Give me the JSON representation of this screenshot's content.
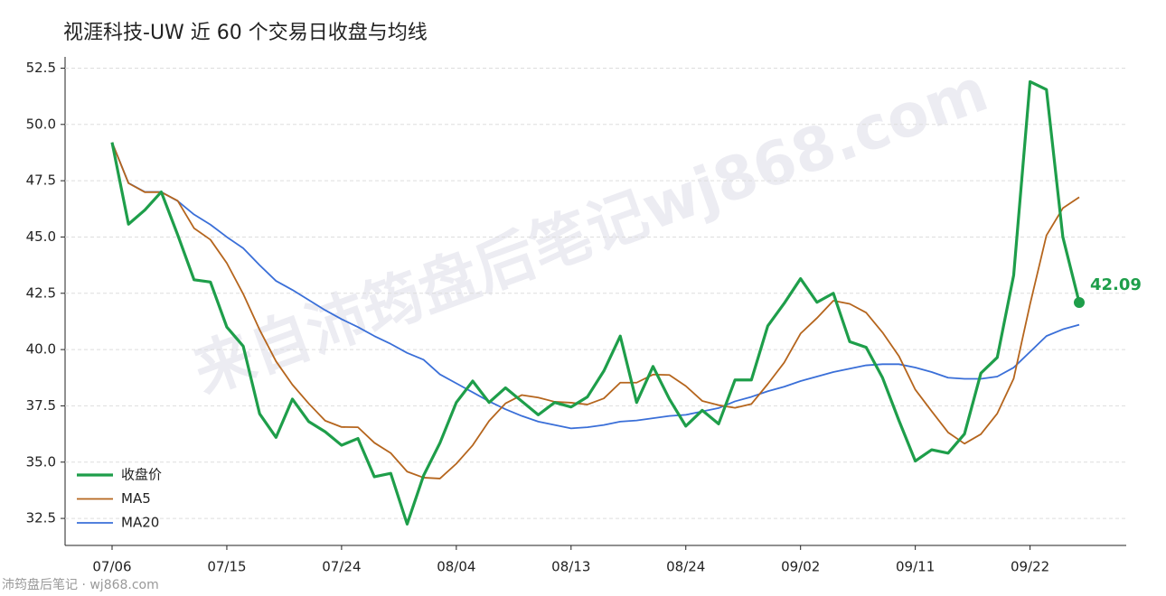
{
  "chart_data": {
    "type": "line",
    "title": "视涯科技-UW 近 60 个交易日收盘与均线",
    "watermark": "来自沛筠盘后笔记wj868.com",
    "footer": "沛筠盘后笔记 · wj868.com",
    "categories": [
      "07/06",
      null,
      null,
      null,
      null,
      null,
      null,
      "07/15",
      null,
      null,
      null,
      null,
      null,
      null,
      "07/24",
      null,
      null,
      null,
      null,
      null,
      null,
      "08/04",
      null,
      null,
      null,
      null,
      null,
      null,
      "08/13",
      null,
      null,
      null,
      null,
      null,
      null,
      "08/24",
      null,
      null,
      null,
      null,
      null,
      null,
      "09/02",
      null,
      null,
      null,
      null,
      null,
      null,
      "09/11",
      null,
      null,
      null,
      null,
      null,
      null,
      "09/22",
      null,
      null,
      null
    ],
    "series": [
      {
        "name": "收盘价",
        "color": "#1e9e4a",
        "values": [
          49.2,
          45.57,
          46.2,
          47.0,
          45.1,
          43.1,
          43.0,
          41.0,
          40.15,
          37.15,
          36.1,
          37.8,
          36.8,
          36.35,
          35.75,
          36.05,
          34.35,
          34.5,
          32.25,
          34.4,
          35.85,
          37.65,
          38.6,
          37.65,
          38.3,
          37.7,
          37.1,
          37.65,
          37.45,
          37.9,
          39.05,
          40.6,
          37.65,
          39.25,
          37.8,
          36.6,
          37.3,
          36.7,
          38.65,
          38.65,
          41.05,
          42.05,
          43.15,
          42.1,
          42.5,
          40.35,
          40.1,
          38.75,
          36.85,
          35.05,
          35.55,
          35.4,
          36.25,
          38.95,
          39.65,
          43.3,
          51.9,
          51.55,
          45.0,
          42.09
        ]
      },
      {
        "name": "MA5",
        "color": "#b5651d",
        "values": [
          49.2,
          47.39,
          46.99,
          46.99,
          46.61,
          45.39,
          44.88,
          43.84,
          42.47,
          40.88,
          39.48,
          38.44,
          37.6,
          36.84,
          36.56,
          36.55,
          35.86,
          35.4,
          34.58,
          34.31,
          34.27,
          34.93,
          35.75,
          36.83,
          37.61,
          37.98,
          37.87,
          37.68,
          37.64,
          37.56,
          37.83,
          38.53,
          38.53,
          38.89,
          38.87,
          38.38,
          37.72,
          37.53,
          37.41,
          37.58,
          38.47,
          39.42,
          40.71,
          41.4,
          42.17,
          42.03,
          41.64,
          40.76,
          39.71,
          38.22,
          37.26,
          36.32,
          35.82,
          36.24,
          37.16,
          38.71,
          42.01,
          45.07,
          46.28,
          46.77
        ]
      },
      {
        "name": "MA20",
        "color": "#3a6fd8",
        "values": [
          49.2,
          47.4,
          47.0,
          47.0,
          46.6,
          46.0,
          45.55,
          45.0,
          44.5,
          43.75,
          43.05,
          42.65,
          42.2,
          41.75,
          41.35,
          41.0,
          40.6,
          40.25,
          39.85,
          39.55,
          38.9,
          38.5,
          38.1,
          37.7,
          37.35,
          37.05,
          36.8,
          36.65,
          36.5,
          36.55,
          36.65,
          36.8,
          36.85,
          36.95,
          37.05,
          37.1,
          37.25,
          37.4,
          37.7,
          37.9,
          38.15,
          38.35,
          38.6,
          38.8,
          39.0,
          39.15,
          39.3,
          39.35,
          39.35,
          39.2,
          39.0,
          38.75,
          38.7,
          38.7,
          38.8,
          39.2,
          39.9,
          40.6,
          40.9,
          41.1
        ]
      }
    ],
    "ylim": [
      31.3,
      53.0
    ],
    "yticks": [
      32.5,
      {
        "value": 35,
        "label": "35.0"
      },
      37.5,
      {
        "value": 40,
        "label": "40.0"
      },
      42.5,
      {
        "value": 45,
        "label": "45.0"
      },
      47.5,
      {
        "value": 50,
        "label": "50.0"
      },
      52.5
    ],
    "grid": true,
    "legend": "lower left"
  }
}
